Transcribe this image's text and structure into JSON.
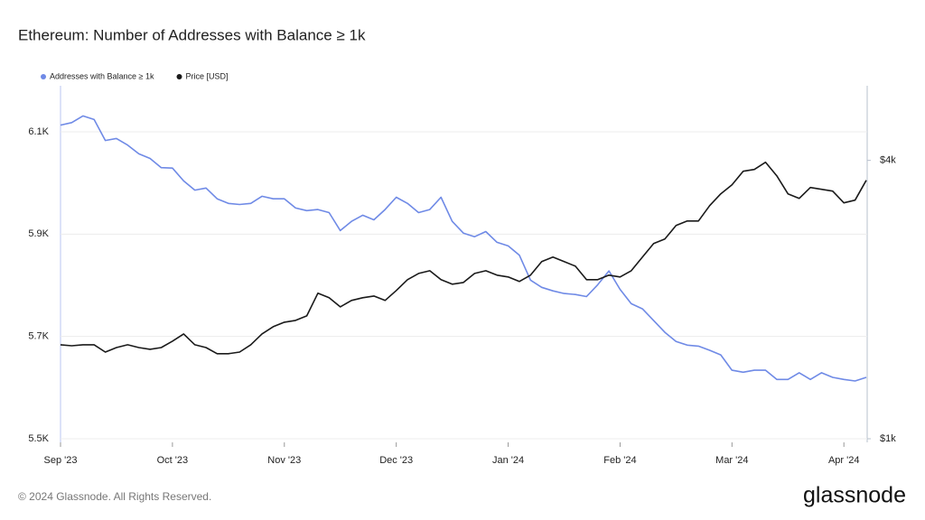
{
  "chart_data": {
    "type": "line",
    "title": "Ethereum: Number of Addresses with Balance ≥ 1k",
    "categories": [
      "Sep '23",
      null,
      null,
      null,
      null,
      null,
      null,
      null,
      null,
      null,
      "Oct '23",
      null,
      null,
      null,
      null,
      null,
      null,
      null,
      null,
      null,
      "Nov '23",
      null,
      null,
      null,
      null,
      null,
      null,
      null,
      null,
      null,
      "Dec '23",
      null,
      null,
      null,
      null,
      null,
      null,
      null,
      null,
      null,
      "Jan '24",
      null,
      null,
      null,
      null,
      null,
      null,
      null,
      null,
      null,
      "Feb '24",
      null,
      null,
      null,
      null,
      null,
      null,
      null,
      null,
      null,
      "Mar '24",
      null,
      null,
      null,
      null,
      null,
      null,
      null,
      null,
      null,
      "Apr '24",
      null,
      null
    ],
    "series": [
      {
        "name": "Addresses with Balance ≥ 1k",
        "color": "#6f8ae6",
        "axis": "y",
        "values": [
          6113,
          6118,
          6131,
          6124,
          6083,
          6087,
          6074,
          6057,
          6048,
          6030,
          6029,
          6004,
          5986,
          5990,
          5969,
          5960,
          5958,
          5960,
          5974,
          5969,
          5969,
          5951,
          5946,
          5948,
          5942,
          5907,
          5925,
          5937,
          5928,
          5948,
          5972,
          5960,
          5942,
          5948,
          5972,
          5925,
          5902,
          5895,
          5905,
          5884,
          5877,
          5859,
          5810,
          5796,
          5789,
          5784,
          5782,
          5778,
          5801,
          5828,
          5792,
          5764,
          5754,
          5731,
          5708,
          5690,
          5683,
          5681,
          5673,
          5664,
          5634,
          5630,
          5634,
          5634,
          5616,
          5616,
          5629,
          5616,
          5629,
          5620,
          5616,
          5613,
          5620
        ]
      },
      {
        "name": "Price [USD]",
        "color": "#1a1a1a",
        "axis": "y2",
        "values": [
          1597,
          1589,
          1597,
          1597,
          1540,
          1575,
          1597,
          1575,
          1561,
          1575,
          1626,
          1685,
          1597,
          1575,
          1527,
          1527,
          1540,
          1597,
          1685,
          1747,
          1787,
          1803,
          1844,
          2064,
          2018,
          1929,
          1991,
          2018,
          2036,
          1991,
          2092,
          2208,
          2278,
          2309,
          2208,
          2159,
          2178,
          2278,
          2309,
          2258,
          2238,
          2188,
          2258,
          2416,
          2471,
          2416,
          2362,
          2208,
          2208,
          2258,
          2238,
          2309,
          2471,
          2643,
          2703,
          2892,
          2958,
          2958,
          3193,
          3386,
          3541,
          3789,
          3823,
          3963,
          3704,
          3386,
          3310,
          3494,
          3463,
          3432,
          3237,
          3281,
          3622
        ]
      }
    ],
    "ylim": [
      5500,
      6190
    ],
    "yticks": [
      {
        "value": 5500,
        "label": "5.5K"
      },
      {
        "value": 5700,
        "label": "5.7K"
      },
      {
        "value": 5900,
        "label": "5.9K"
      },
      {
        "value": 6100,
        "label": "6.1K"
      }
    ],
    "y2lim": [
      1000,
      5800
    ],
    "y2log": true,
    "y2ticks": [
      {
        "value": 1000,
        "label": "$1k"
      },
      {
        "value": 4000,
        "label": "$4k"
      }
    ],
    "grid": true,
    "legend": "top-left"
  },
  "footer": {
    "copyright": "© 2024 Glassnode. All Rights Reserved.",
    "brand": "glassnode"
  }
}
